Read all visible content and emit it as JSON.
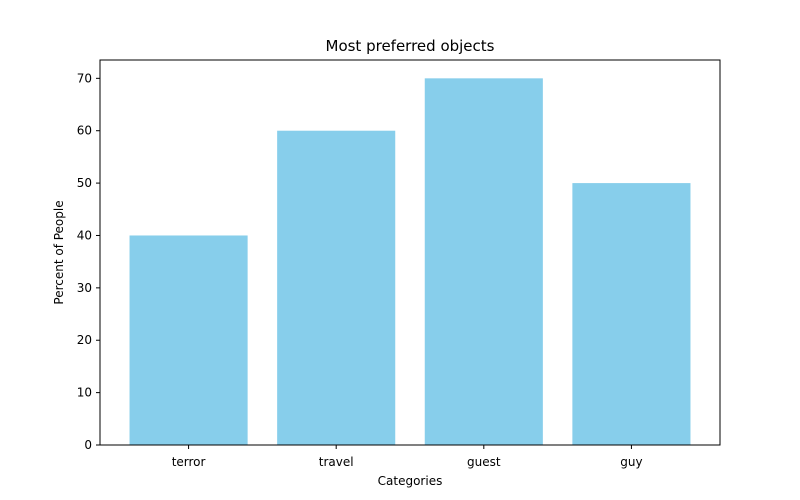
{
  "chart_data": {
    "type": "bar",
    "title": "Most preferred objects",
    "xlabel": "Categories",
    "ylabel": "Percent of People",
    "categories": [
      "terror",
      "travel",
      "guest",
      "guy"
    ],
    "values": [
      40,
      60,
      70,
      50
    ],
    "ylim": [
      0,
      73.5
    ],
    "yticks": [
      0,
      10,
      20,
      30,
      40,
      50,
      60,
      70
    ],
    "grid": false,
    "colors": {
      "bar": "#87ceeb",
      "axis": "#000000",
      "background": "#ffffff"
    }
  }
}
